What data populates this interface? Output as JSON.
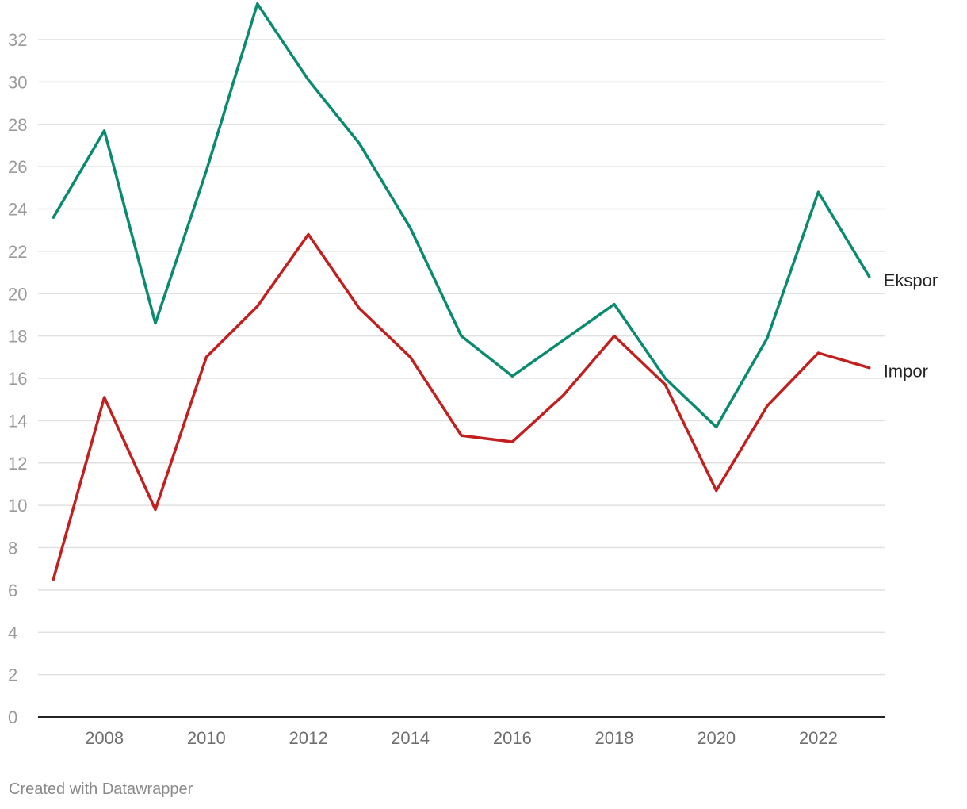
{
  "chart_data": {
    "type": "line",
    "x": [
      2007,
      2008,
      2009,
      2010,
      2011,
      2012,
      2013,
      2014,
      2015,
      2016,
      2017,
      2018,
      2019,
      2020,
      2021,
      2022,
      2023
    ],
    "series": [
      {
        "name": "Ekspor",
        "color": "#0a8a6e",
        "values": [
          23.6,
          27.7,
          18.6,
          25.8,
          33.7,
          30.1,
          27.1,
          23.1,
          18.0,
          16.1,
          17.8,
          19.5,
          16.0,
          13.7,
          17.9,
          24.8,
          20.8
        ]
      },
      {
        "name": "Impor",
        "color": "#c21f1f",
        "values": [
          6.5,
          15.1,
          9.8,
          17.0,
          19.4,
          22.8,
          19.3,
          17.0,
          13.3,
          13.0,
          15.2,
          18.0,
          15.7,
          10.7,
          14.7,
          17.2,
          16.5
        ]
      }
    ],
    "ylim": [
      0,
      33.5
    ],
    "yticks": [
      "0",
      "2",
      "4",
      "6",
      "8",
      "10",
      "12",
      "14",
      "16",
      "18",
      "20",
      "22",
      "24",
      "26",
      "28",
      "30",
      "32"
    ],
    "xticks": [
      "2008",
      "2010",
      "2012",
      "2014",
      "2016",
      "2018",
      "2020",
      "2022"
    ],
    "grid": true,
    "legend": "inline labels at line ends"
  },
  "footer": {
    "credit": "Created with Datawrapper"
  }
}
